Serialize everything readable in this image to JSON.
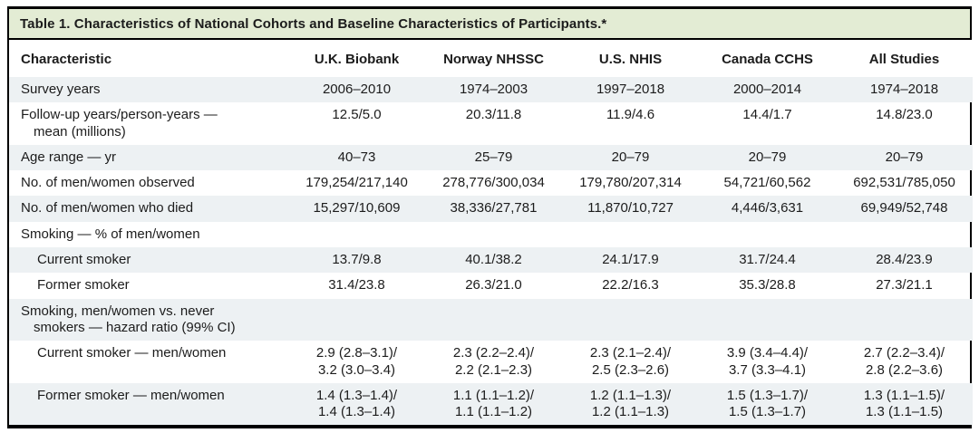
{
  "colors": {
    "title_bg": "#e3ecd4",
    "stripe_bg": "#edf1f3",
    "border": "#000000",
    "text": "#1c1c1c"
  },
  "table": {
    "title": "Table 1. Characteristics of National Cohorts and Baseline Characteristics of Participants.*",
    "columns": [
      "Characteristic",
      "U.K. Biobank",
      "Norway NHSSC",
      "U.S. NHIS",
      "Canada CCHS",
      "All Studies"
    ],
    "rows": [
      {
        "label": "Survey years",
        "label_cont": "",
        "indent": false,
        "values": [
          "2006–2010",
          "1974–2003",
          "1997–2018",
          "2000–2014",
          "1974–2018"
        ]
      },
      {
        "label": "Follow-up years/person-years —",
        "label_cont": "mean (millions)",
        "indent": false,
        "values": [
          "12.5/5.0",
          "20.3/11.8",
          "11.9/4.6",
          "14.4/1.7",
          "14.8/23.0"
        ]
      },
      {
        "label": "Age range — yr",
        "label_cont": "",
        "indent": false,
        "values": [
          "40–73",
          "25–79",
          "20–79",
          "20–79",
          "20–79"
        ]
      },
      {
        "label": "No. of men/women observed",
        "label_cont": "",
        "indent": false,
        "values": [
          "179,254/217,140",
          "278,776/300,034",
          "179,780/207,314",
          "54,721/60,562",
          "692,531/785,050"
        ]
      },
      {
        "label": "No. of men/women who died",
        "label_cont": "",
        "indent": false,
        "values": [
          "15,297/10,609",
          "38,336/27,781",
          "11,870/10,727",
          "4,446/3,631",
          "69,949/52,748"
        ]
      },
      {
        "label": "Smoking — % of men/women",
        "label_cont": "",
        "indent": false,
        "values": [
          "",
          "",
          "",
          "",
          ""
        ]
      },
      {
        "label": "Current smoker",
        "label_cont": "",
        "indent": true,
        "values": [
          "13.7/9.8",
          "40.1/38.2",
          "24.1/17.9",
          "31.7/24.4",
          "28.4/23.9"
        ]
      },
      {
        "label": "Former smoker",
        "label_cont": "",
        "indent": true,
        "values": [
          "31.4/23.8",
          "26.3/21.0",
          "22.2/16.3",
          "35.3/28.8",
          "27.3/21.1"
        ]
      },
      {
        "label": "Smoking, men/women vs. never",
        "label_cont": "smokers — hazard ratio (99% CI)",
        "indent": false,
        "values": [
          "",
          "",
          "",
          "",
          ""
        ]
      },
      {
        "label": "Current smoker — men/women",
        "label_cont": "",
        "indent": true,
        "values": [
          "2.9 (2.8–3.1)/\n3.2 (3.0–3.4)",
          "2.3 (2.2–2.4)/\n2.2 (2.1–2.3)",
          "2.3 (2.1–2.4)/\n2.5 (2.3–2.6)",
          "3.9 (3.4–4.4)/\n3.7 (3.3–4.1)",
          "2.7 (2.2–3.4)/\n2.8 (2.2–3.6)"
        ]
      },
      {
        "label": "Former smoker — men/women",
        "label_cont": "",
        "indent": true,
        "values": [
          "1.4 (1.3–1.4)/\n1.4 (1.3–1.4)",
          "1.1 (1.1–1.2)/\n1.1 (1.1–1.2)",
          "1.2 (1.1–1.3)/\n1.2 (1.1–1.3)",
          "1.5 (1.3–1.7)/\n1.5 (1.3–1.7)",
          "1.3 (1.1–1.5)/\n1.3 (1.1–1.5)"
        ]
      }
    ]
  }
}
